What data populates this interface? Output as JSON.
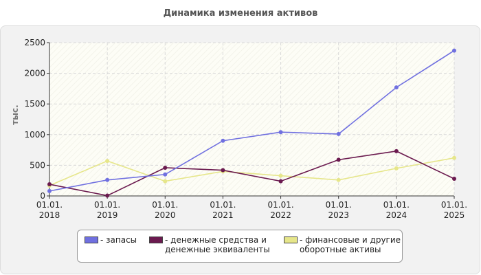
{
  "title": "Динамика изменения активов",
  "chart_data": {
    "type": "line",
    "title": "Динамика изменения активов",
    "xlabel": "",
    "ylabel": "тыс.",
    "ylim": [
      0,
      2500
    ],
    "yticks": [
      0,
      500,
      1000,
      1500,
      2000,
      2500
    ],
    "grid": true,
    "legend_position": "bottom",
    "categories": [
      "01.01.\n2018",
      "01.01.\n2019",
      "01.01.\n2020",
      "01.01.\n2021",
      "01.01.\n2022",
      "01.01.\n2023",
      "01.01.\n2024",
      "01.01.\n2025"
    ],
    "series": [
      {
        "name": "запасы",
        "color": "#7070e0",
        "values": [
          80,
          260,
          350,
          900,
          1040,
          1010,
          1770,
          2370
        ]
      },
      {
        "name": "денежные средства и денежные эквиваленты",
        "color": "#6b1a4f",
        "values": [
          190,
          5,
          460,
          420,
          240,
          590,
          730,
          280
        ]
      },
      {
        "name": "финансовые и другие оборотные активы",
        "color": "#e6e68a",
        "values": [
          170,
          570,
          240,
          400,
          330,
          260,
          450,
          620
        ]
      }
    ]
  },
  "axis": {
    "y_title": "тыс.",
    "y_ticks": [
      "0",
      "500",
      "1000",
      "1500",
      "2000",
      "2500"
    ],
    "x_ticks": [
      {
        "l1": "01.01.",
        "l2": "2018"
      },
      {
        "l1": "01.01.",
        "l2": "2019"
      },
      {
        "l1": "01.01.",
        "l2": "2020"
      },
      {
        "l1": "01.01.",
        "l2": "2021"
      },
      {
        "l1": "01.01.",
        "l2": "2022"
      },
      {
        "l1": "01.01.",
        "l2": "2023"
      },
      {
        "l1": "01.01.",
        "l2": "2024"
      },
      {
        "l1": "01.01.",
        "l2": "2025"
      }
    ]
  },
  "legend": {
    "items": [
      {
        "line1": "- запасы",
        "line2": "",
        "color": "#7070e0"
      },
      {
        "line1": "- денежные средства и",
        "line2": "денежные эквиваленты",
        "color": "#6b1a4f"
      },
      {
        "line1": "- финансовые и другие",
        "line2": "оборотные активы",
        "color": "#e6e68a"
      }
    ]
  }
}
